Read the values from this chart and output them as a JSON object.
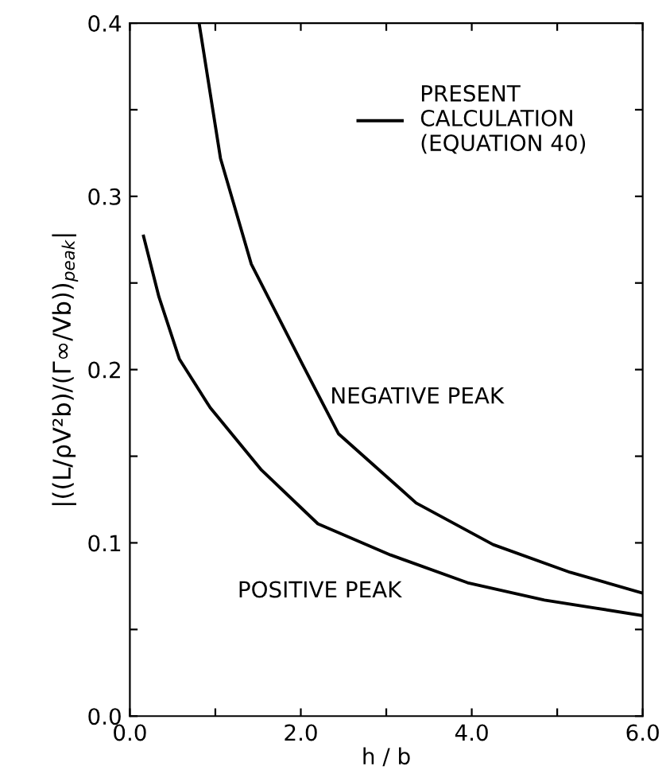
{
  "chart_data": {
    "type": "line",
    "xlabel": "h / b",
    "ylabel": "|((L/ρV²b)/(Γ∞/Vb))$_{peak}$|",
    "series": [
      {
        "name": "PRESENT\nCALCULATION\n(EQUATION 40)",
        "color": "#000000",
        "x": [
          0.81,
          1.06,
          1.42,
          2.02,
          2.44,
          3.35,
          4.25,
          5.15,
          6.0
        ],
        "values": [
          0.4,
          0.322,
          0.261,
          0.203,
          0.163,
          0.123,
          0.099,
          0.083,
          0.071
        ]
      },
      {
        "color": "#000000",
        "x": [
          0.16,
          0.34,
          0.58,
          0.94,
          1.54,
          2.2,
          3.05,
          3.95,
          4.85,
          6.0
        ],
        "values": [
          0.277,
          0.242,
          0.206,
          0.178,
          0.142,
          0.111,
          0.093,
          0.077,
          0.067,
          0.058
        ]
      }
    ],
    "annotations": [
      "NEGATIVE PEAK",
      "POSITIVE PEAK"
    ],
    "xlim": [
      0,
      6
    ],
    "xticks": [
      {
        "value": 0,
        "label": "0.0"
      },
      {
        "value": 1,
        "label": null
      },
      {
        "value": 2,
        "label": "2.0"
      },
      {
        "value": 3,
        "label": null
      },
      {
        "value": 4,
        "label": "4.0"
      },
      {
        "value": 5,
        "label": null
      },
      {
        "value": 6,
        "label": "6.0"
      }
    ],
    "ylim": [
      0,
      0.4
    ],
    "yticks": [
      {
        "value": 0,
        "label": "0.0"
      },
      {
        "value": 0.05,
        "label": null
      },
      0.1,
      {
        "value": 0.15,
        "label": null
      },
      0.2,
      {
        "value": 0.25,
        "label": null
      },
      0.3,
      {
        "value": 0.35,
        "label": null
      },
      0.4
    ],
    "grid": false,
    "legend": "top right",
    "marker": "none",
    "line_style": "solid"
  }
}
